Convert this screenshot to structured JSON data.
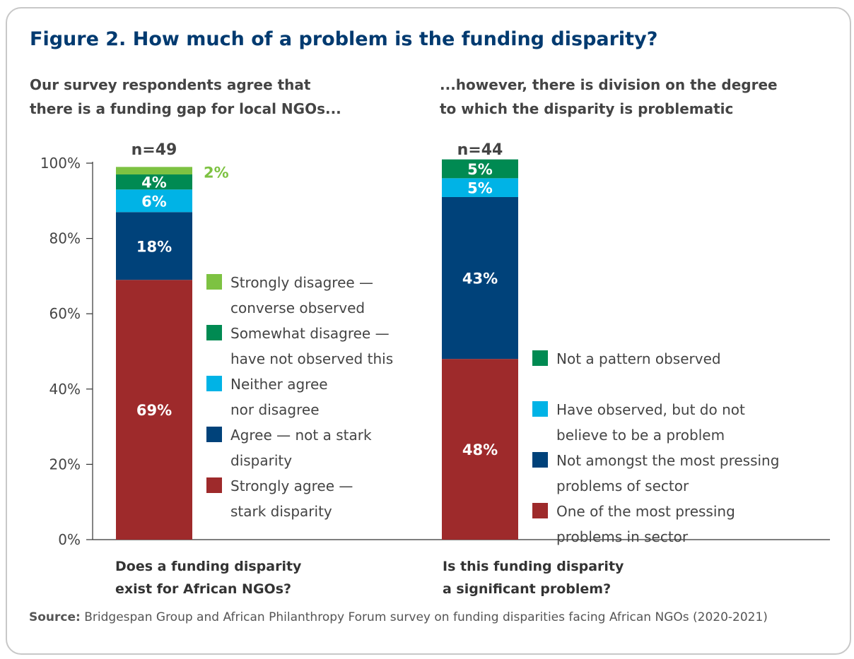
{
  "title": "Figure 2. How much of a problem is the funding disparity?",
  "subtitles": {
    "left": [
      "Our survey respondents agree that",
      "there is a funding gap for local NGOs..."
    ],
    "right": [
      "...however, there is division on the degree",
      "to which the disparity is problematic"
    ]
  },
  "x_labels": {
    "left": [
      "Does a funding disparity",
      "exist for African NGOs?"
    ],
    "right": [
      "Is this funding disparity",
      "a significant problem?"
    ]
  },
  "source": {
    "label": "Source:",
    "text": "Bridgespan Group and African Philanthropy Forum survey on funding disparities facing African NGOs (2020-2021)"
  },
  "chart_data": {
    "type": "bar",
    "stacked": true,
    "yticks": [
      "0%",
      "20%",
      "40%",
      "60%",
      "80%",
      "100%"
    ],
    "ylim": [
      0,
      100
    ],
    "grid": false,
    "bars": [
      {
        "n_label": "n=49",
        "legend_order": "top-down",
        "segments": [
          {
            "name": [
              "Strongly agree —",
              "stark disparity"
            ],
            "value": 69,
            "label": "69%",
            "color": "#9e2a2b",
            "text_color": "#ffffff"
          },
          {
            "name": [
              "Agree — not a stark",
              "disparity"
            ],
            "value": 18,
            "label": "18%",
            "color": "#00427a",
            "text_color": "#ffffff"
          },
          {
            "name": [
              "Neither agree",
              "nor disagree"
            ],
            "value": 6,
            "label": "6%",
            "color": "#00b3e6",
            "text_color": "#ffffff"
          },
          {
            "name": [
              "Somewhat disagree —",
              "have not observed this"
            ],
            "value": 4,
            "label": "4%",
            "color": "#008a52",
            "text_color": "#ffffff"
          },
          {
            "name": [
              "Strongly disagree —",
              "converse observed"
            ],
            "value": 2,
            "label": "2%",
            "color": "#7dc242",
            "text_color": "#7dc242",
            "label_outside": true
          }
        ]
      },
      {
        "n_label": "n=44",
        "segments": [
          {
            "name": [
              "One of the most pressing",
              "problems in sector"
            ],
            "value": 48,
            "label": "48%",
            "color": "#9e2a2b",
            "text_color": "#ffffff"
          },
          {
            "name": [
              "Not amongst the most pressing",
              "problems of sector"
            ],
            "value": 43,
            "label": "43%",
            "color": "#00427a",
            "text_color": "#ffffff"
          },
          {
            "name": [
              "Have observed, but do not",
              "believe to be a problem"
            ],
            "value": 5,
            "label": "5%",
            "color": "#00b3e6",
            "text_color": "#ffffff"
          },
          {
            "name": [
              "Not a pattern observed"
            ],
            "value": 5,
            "label": "5%",
            "color": "#008a52",
            "text_color": "#ffffff"
          }
        ]
      }
    ]
  }
}
